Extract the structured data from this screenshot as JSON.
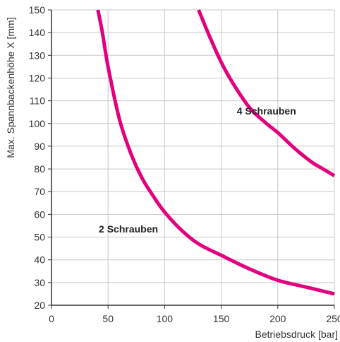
{
  "chart_data": {
    "type": "line",
    "xlabel": "Betriebsdruck [bar]",
    "ylabel": "Max. Spannbackenhöhe X [mm]",
    "xlim": [
      0,
      250
    ],
    "ylim": [
      20,
      150
    ],
    "x_ticks": [
      0,
      50,
      100,
      150,
      200,
      250
    ],
    "y_ticks": [
      20,
      30,
      40,
      50,
      60,
      70,
      80,
      90,
      100,
      110,
      120,
      130,
      140,
      150
    ],
    "grid": true,
    "line_color": "#e3007e",
    "series": [
      {
        "name": "2 Schrauben",
        "points": [
          [
            41,
            150
          ],
          [
            45,
            140
          ],
          [
            50,
            125
          ],
          [
            60,
            102
          ],
          [
            70,
            87
          ],
          [
            80,
            76
          ],
          [
            90,
            68
          ],
          [
            100,
            61
          ],
          [
            115,
            53
          ],
          [
            130,
            47
          ],
          [
            150,
            42
          ],
          [
            175,
            36
          ],
          [
            200,
            31
          ],
          [
            225,
            28
          ],
          [
            250,
            25
          ]
        ]
      },
      {
        "name": "4 Schrauben",
        "points": [
          [
            130,
            150
          ],
          [
            140,
            138
          ],
          [
            150,
            127
          ],
          [
            160,
            118
          ],
          [
            175,
            107
          ],
          [
            190,
            100
          ],
          [
            200,
            96
          ],
          [
            215,
            89
          ],
          [
            230,
            83
          ],
          [
            240,
            80
          ],
          [
            250,
            77
          ]
        ]
      }
    ],
    "annotations": [
      {
        "text": "4 Schrauben",
        "x": 190,
        "y": 104
      },
      {
        "text": "2 Schrauben",
        "x": 68,
        "y": 52
      }
    ]
  }
}
